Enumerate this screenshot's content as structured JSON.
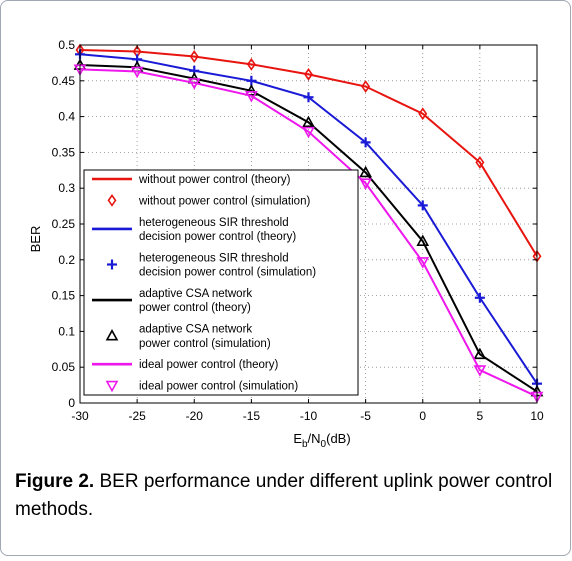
{
  "figure": {
    "caption_label": "Figure 2.",
    "caption_text": "BER performance under different uplink power control methods."
  },
  "chart_data": {
    "type": "line",
    "title": "",
    "xlabel_main": "E",
    "xlabel_sub1": "b",
    "xlabel_mid": "/N",
    "xlabel_sub2": "0",
    "xlabel_tail": "(dB)",
    "ylabel": "BER",
    "xlim": [
      -30,
      10
    ],
    "ylim": [
      0,
      0.5
    ],
    "xticks": [
      -30,
      -25,
      -20,
      -15,
      -10,
      -5,
      0,
      5,
      10
    ],
    "yticks": [
      0,
      0.05,
      0.1,
      0.15,
      0.2,
      0.25,
      0.3,
      0.35,
      0.4,
      0.45,
      0.5
    ],
    "grid": "dotted",
    "legend_position": "lower-left",
    "x": [
      -30,
      -25,
      -20,
      -15,
      -10,
      -5,
      0,
      5,
      10
    ],
    "series": [
      {
        "name": "without power control",
        "color": "#e8140f",
        "marker": "diamond",
        "values": [
          0.493,
          0.491,
          0.484,
          0.473,
          0.459,
          0.442,
          0.404,
          0.336,
          0.205
        ],
        "legend_line": "without power control (theory)",
        "legend_marker": "without power control (simulation)"
      },
      {
        "name": "heterogeneous SIR threshold decision power control",
        "color": "#1a1ad6",
        "marker": "plus",
        "values": [
          0.487,
          0.48,
          0.464,
          0.45,
          0.427,
          0.364,
          0.276,
          0.147,
          0.027
        ],
        "legend_line": "heterogeneous SIR threshold|decision power control (theory)",
        "legend_marker": "heterogeneous SIR threshold|decision power control (simulation)"
      },
      {
        "name": "adaptive CSA network power control",
        "color": "#000000",
        "marker": "triangle-up",
        "values": [
          0.472,
          0.469,
          0.453,
          0.436,
          0.392,
          0.322,
          0.226,
          0.068,
          0.016
        ],
        "legend_line": "adaptive CSA network|power control (theory)",
        "legend_marker": "adaptive CSA network|power control (simulation)"
      },
      {
        "name": "ideal power control",
        "color": "#ee17ee",
        "marker": "triangle-down",
        "values": [
          0.466,
          0.463,
          0.447,
          0.429,
          0.379,
          0.307,
          0.197,
          0.046,
          0.009
        ],
        "legend_line": "ideal power control (theory)",
        "legend_marker": "ideal power control (simulation)"
      }
    ]
  }
}
